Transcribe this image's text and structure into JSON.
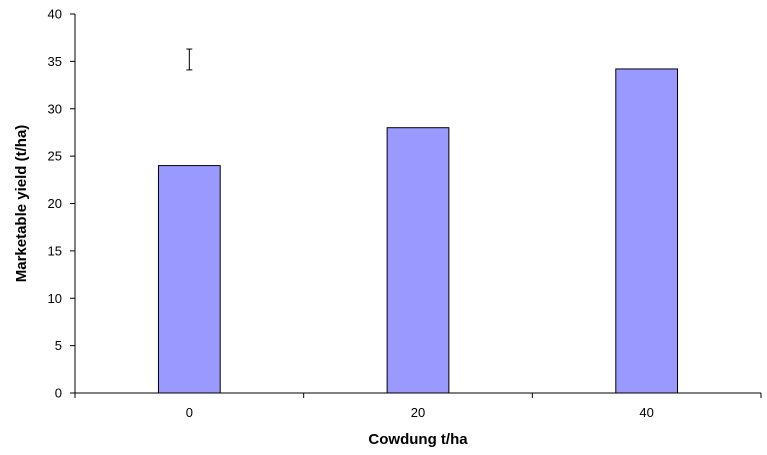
{
  "chart_data": {
    "type": "bar",
    "title": "",
    "xlabel": "Cowdung t/ha",
    "ylabel": "Marketable yield (t/ha)",
    "categories": [
      "0",
      "20",
      "40"
    ],
    "values": [
      24,
      28,
      34.2
    ],
    "ylim": [
      0,
      40
    ],
    "yticks": [
      0,
      5,
      10,
      15,
      20,
      25,
      30,
      35,
      40
    ],
    "grid": false,
    "legend": "none",
    "bar_color": "#9999ff",
    "bar_stroke": "#000000",
    "error_bar": {
      "center": 35.1,
      "low": 34.1,
      "high": 36.3
    }
  }
}
